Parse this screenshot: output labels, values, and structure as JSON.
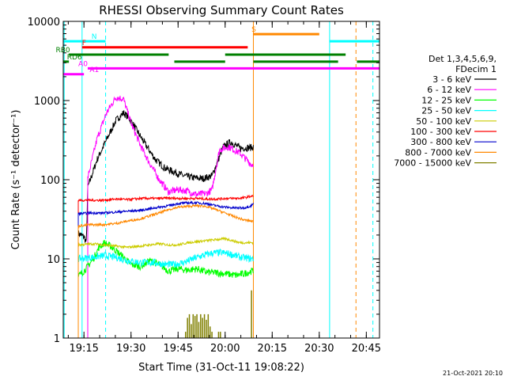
{
  "chart_data": {
    "type": "line",
    "title": "RHESSI Observing Summary Count Rates",
    "xlabel": "Start Time (31-Oct-11 19:08:22)",
    "ylabel": "Count Rate (s⁻¹ detector⁻¹)",
    "timestamp": "21-Oct-2021 20:10",
    "x_start_label": "19:08:22",
    "xlim": [
      19.14,
      20.82
    ],
    "ylim": [
      1,
      10000
    ],
    "yscale": "log",
    "grid": false,
    "legend_position": "right",
    "x_ticks": [
      "19:15",
      "19:30",
      "19:45",
      "20:00",
      "20:15",
      "20:30",
      "20:45"
    ],
    "x_tick_hours": [
      19.25,
      19.5,
      19.75,
      20.0,
      20.25,
      20.5,
      20.75
    ],
    "y_ticks": [
      "1",
      "10",
      "100",
      "1000",
      "10000"
    ],
    "y_tick_values": [
      1,
      10,
      100,
      1000,
      10000
    ],
    "legend_header": [
      "Det 1,3,4,5,6,9,",
      "FDecim 1"
    ],
    "series": [
      {
        "name": "3 - 6 keV",
        "color": "#000000",
        "style": "noisy",
        "points": [
          [
            19.22,
            21
          ],
          [
            19.25,
            19
          ],
          [
            19.263,
            16
          ],
          [
            19.27,
            80
          ],
          [
            19.32,
            180
          ],
          [
            19.37,
            320
          ],
          [
            19.42,
            560
          ],
          [
            19.46,
            700
          ],
          [
            19.49,
            600
          ],
          [
            19.53,
            420
          ],
          [
            19.58,
            270
          ],
          [
            19.63,
            180
          ],
          [
            19.68,
            140
          ],
          [
            19.73,
            125
          ],
          [
            19.78,
            112
          ],
          [
            19.83,
            106
          ],
          [
            19.88,
            103
          ],
          [
            19.93,
            112
          ],
          [
            19.99,
            260
          ],
          [
            20.03,
            300
          ],
          [
            20.08,
            250
          ],
          [
            20.14,
            255
          ],
          [
            20.15,
            260
          ]
        ]
      },
      {
        "name": "6 - 12 keV",
        "color": "#ff00ff",
        "style": "noisy",
        "points": [
          [
            19.27,
            105
          ],
          [
            19.32,
            330
          ],
          [
            19.37,
            700
          ],
          [
            19.42,
            1100
          ],
          [
            19.46,
            1050
          ],
          [
            19.5,
            520
          ],
          [
            19.55,
            270
          ],
          [
            19.6,
            160
          ],
          [
            19.65,
            100
          ],
          [
            19.7,
            70
          ],
          [
            19.75,
            75
          ],
          [
            19.8,
            72
          ],
          [
            19.85,
            65
          ],
          [
            19.9,
            67
          ],
          [
            19.93,
            74
          ],
          [
            19.97,
            240
          ],
          [
            20.02,
            260
          ],
          [
            20.08,
            215
          ],
          [
            20.14,
            155
          ],
          [
            20.15,
            160
          ]
        ]
      },
      {
        "name": "12 - 25 keV",
        "color": "#00ff00",
        "style": "noisy",
        "points": [
          [
            19.22,
            6
          ],
          [
            19.26,
            7.5
          ],
          [
            19.3,
            10
          ],
          [
            19.33,
            14
          ],
          [
            19.36,
            16
          ],
          [
            19.4,
            14
          ],
          [
            19.45,
            11
          ],
          [
            19.5,
            8.5
          ],
          [
            19.55,
            8
          ],
          [
            19.6,
            9.5
          ],
          [
            19.65,
            8.5
          ],
          [
            19.7,
            7
          ],
          [
            19.75,
            7.5
          ],
          [
            19.8,
            7.2
          ],
          [
            19.85,
            7.5
          ],
          [
            19.9,
            6.8
          ],
          [
            19.95,
            6.7
          ],
          [
            20.0,
            6.5
          ],
          [
            20.06,
            6.2
          ],
          [
            20.1,
            6.5
          ],
          [
            20.14,
            7
          ],
          [
            20.15,
            7
          ]
        ]
      },
      {
        "name": "25 - 50 keV",
        "color": "#00ffff",
        "style": "noisy",
        "points": [
          [
            19.22,
            10
          ],
          [
            19.3,
            10.5
          ],
          [
            19.36,
            11
          ],
          [
            19.42,
            10.5
          ],
          [
            19.48,
            9.5
          ],
          [
            19.55,
            9
          ],
          [
            19.62,
            9
          ],
          [
            19.68,
            8.5
          ],
          [
            19.73,
            8.5
          ],
          [
            19.78,
            9
          ],
          [
            19.83,
            10
          ],
          [
            19.88,
            11
          ],
          [
            19.93,
            11.8
          ],
          [
            19.98,
            12
          ],
          [
            20.03,
            11.5
          ],
          [
            20.08,
            10.5
          ],
          [
            20.14,
            10
          ],
          [
            20.15,
            10
          ]
        ]
      },
      {
        "name": "50 - 100 keV",
        "color": "#cccc00",
        "style": "smooth",
        "points": [
          [
            19.22,
            15
          ],
          [
            19.3,
            15.5
          ],
          [
            19.36,
            15
          ],
          [
            19.42,
            14.5
          ],
          [
            19.48,
            14
          ],
          [
            19.55,
            14.5
          ],
          [
            19.6,
            15
          ],
          [
            19.65,
            15.5
          ],
          [
            19.7,
            15
          ],
          [
            19.75,
            15
          ],
          [
            19.8,
            16
          ],
          [
            19.85,
            16.5
          ],
          [
            19.9,
            17
          ],
          [
            19.95,
            17.5
          ],
          [
            20.0,
            18
          ],
          [
            20.04,
            17
          ],
          [
            20.08,
            16
          ],
          [
            20.12,
            16
          ],
          [
            20.15,
            16
          ]
        ]
      },
      {
        "name": "100 - 300 keV",
        "color": "#ff0000",
        "style": "smooth",
        "points": [
          [
            19.22,
            55
          ],
          [
            19.28,
            55
          ],
          [
            19.35,
            55
          ],
          [
            19.42,
            57
          ],
          [
            19.48,
            56
          ],
          [
            19.55,
            58
          ],
          [
            19.6,
            58
          ],
          [
            19.65,
            58
          ],
          [
            19.7,
            58.5
          ],
          [
            19.75,
            58
          ],
          [
            19.8,
            58
          ],
          [
            19.85,
            58
          ],
          [
            19.9,
            57
          ],
          [
            19.95,
            57
          ],
          [
            20.0,
            58
          ],
          [
            20.05,
            58
          ],
          [
            20.1,
            59
          ],
          [
            20.14,
            62
          ],
          [
            20.15,
            62
          ]
        ]
      },
      {
        "name": "300 - 800 keV",
        "color": "#0000cc",
        "style": "smooth",
        "points": [
          [
            19.22,
            37
          ],
          [
            19.28,
            38
          ],
          [
            19.35,
            38
          ],
          [
            19.42,
            39
          ],
          [
            19.48,
            40
          ],
          [
            19.55,
            41
          ],
          [
            19.6,
            43
          ],
          [
            19.65,
            45
          ],
          [
            19.7,
            47
          ],
          [
            19.75,
            50
          ],
          [
            19.8,
            51
          ],
          [
            19.85,
            51
          ],
          [
            19.9,
            50
          ],
          [
            19.95,
            47
          ],
          [
            20.0,
            45
          ],
          [
            20.05,
            44
          ],
          [
            20.1,
            44
          ],
          [
            20.14,
            47
          ],
          [
            20.15,
            50
          ]
        ]
      },
      {
        "name": "800 - 7000 keV",
        "color": "#ff8800",
        "style": "smooth",
        "points": [
          [
            19.22,
            26
          ],
          [
            19.28,
            27
          ],
          [
            19.35,
            27
          ],
          [
            19.42,
            28
          ],
          [
            19.48,
            30
          ],
          [
            19.55,
            32
          ],
          [
            19.6,
            35
          ],
          [
            19.65,
            38
          ],
          [
            19.7,
            42
          ],
          [
            19.75,
            45
          ],
          [
            19.8,
            46
          ],
          [
            19.85,
            47
          ],
          [
            19.9,
            46
          ],
          [
            19.95,
            42
          ],
          [
            20.0,
            38
          ],
          [
            20.05,
            34
          ],
          [
            20.1,
            31
          ],
          [
            20.14,
            30
          ],
          [
            20.15,
            30
          ]
        ]
      },
      {
        "name": "7000 - 15000 keV",
        "color": "#808000",
        "style": "spikes",
        "points": [
          [
            19.79,
            1.2
          ],
          [
            19.8,
            1.8
          ],
          [
            19.81,
            2
          ],
          [
            19.82,
            1.5
          ],
          [
            19.83,
            2
          ],
          [
            19.84,
            1.9
          ],
          [
            19.85,
            2
          ],
          [
            19.86,
            1.6
          ],
          [
            19.87,
            2
          ],
          [
            19.88,
            1.8
          ],
          [
            19.89,
            2
          ],
          [
            19.9,
            1.7
          ],
          [
            19.91,
            2
          ],
          [
            19.92,
            1.4
          ],
          [
            19.93,
            1.2
          ],
          [
            19.965,
            1.2
          ],
          [
            19.975,
            1.2
          ],
          [
            20.14,
            4
          ]
        ]
      }
    ],
    "state_bars": [
      {
        "label": "N",
        "color": "#00ffff",
        "y_level": 5600,
        "segments": [
          [
            19.14,
            19.365
          ]
        ],
        "label_hour": 19.29
      },
      {
        "label": "N",
        "color": "#00ffff",
        "y_level": 5600,
        "segments": [
          [
            20.555,
            20.82
          ]
        ],
        "label_hour": null
      },
      {
        "label": "S",
        "color": "#ff8800",
        "y_level": 6900,
        "segments": [
          [
            20.15,
            20.5
          ]
        ],
        "label_hour": 20.14
      },
      {
        "label": "F",
        "color": "#ff0000",
        "y_level": 4700,
        "segments": [
          [
            19.24,
            20.12
          ]
        ],
        "label_hour": 19.24
      },
      {
        "label": "RB0",
        "color": "#008000",
        "y_level": 3800,
        "segments": [
          [
            19.17,
            19.7
          ],
          [
            20.0,
            20.64
          ]
        ],
        "label_hour": 19.1
      },
      {
        "label": "RD6",
        "color": "#008000",
        "y_level": 3100,
        "segments": [
          [
            19.14,
            19.17
          ],
          [
            19.73,
            20.0
          ],
          [
            20.15,
            20.6
          ],
          [
            20.7,
            20.82
          ]
        ],
        "label_hour": 19.16
      },
      {
        "label": "A0",
        "color": "#ff00ff",
        "y_level": 2550,
        "segments": [
          [
            19.27,
            20.82
          ]
        ],
        "label_hour": 19.22
      },
      {
        "label": "A1",
        "color": "#ff00ff",
        "y_level": 2150,
        "segments": [
          [
            19.14,
            19.25
          ]
        ],
        "label_hour": 19.28
      }
    ],
    "vertical_markers": [
      {
        "hour": 19.145,
        "color": "#00ffff",
        "dashed": false
      },
      {
        "hour": 19.24,
        "color": "#00ffff",
        "dashed": false
      },
      {
        "hour": 19.365,
        "color": "#00ffff",
        "dashed": true
      },
      {
        "hour": 20.15,
        "color": "#ff8800",
        "dashed": false
      },
      {
        "hour": 20.555,
        "color": "#00ffff",
        "dashed": false
      },
      {
        "hour": 20.695,
        "color": "#ff8800",
        "dashed": true
      },
      {
        "hour": 20.785,
        "color": "#00ffff",
        "dashed": true
      }
    ]
  }
}
